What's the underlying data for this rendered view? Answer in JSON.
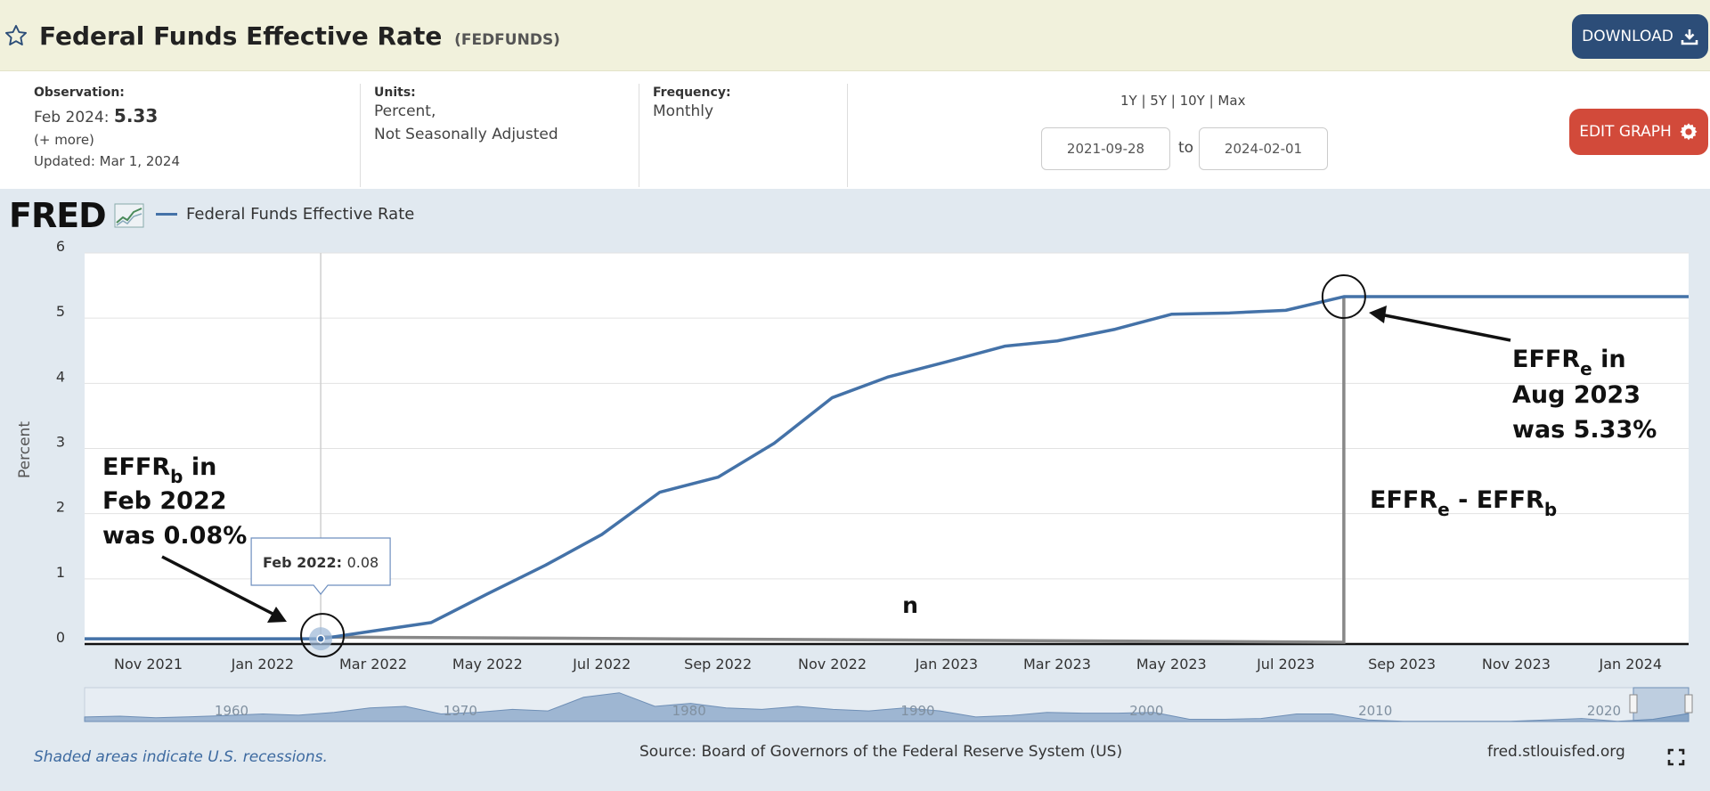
{
  "header": {
    "title": "Federal Funds Effective Rate",
    "series_id": "(FEDFUNDS)",
    "download_label": "DOWNLOAD",
    "edit_label": "EDIT GRAPH"
  },
  "observation": {
    "label": "Observation:",
    "period": "Feb 2024:",
    "value": "5.33",
    "more": "(+ more)",
    "updated": "Updated: Mar 1, 2024"
  },
  "units": {
    "label": "Units:",
    "line1": "Percent,",
    "line2": "Not Seasonally Adjusted"
  },
  "frequency": {
    "label": "Frequency:",
    "value": "Monthly"
  },
  "date_range": {
    "presets": "1Y | 5Y | 10Y | Max",
    "start": "2021-09-28",
    "to": "to",
    "end": "2024-02-01"
  },
  "legend": {
    "logo": "FRED",
    "series_name": "Federal Funds Effective Rate"
  },
  "footer": {
    "recession_note": "Shaded areas indicate U.S. recessions.",
    "source": "Source: Board of Governors of the Federal Reserve System (US)",
    "site": "fred.stlouisfed.org"
  },
  "colors": {
    "line": "#4472a8",
    "annotation": "#888888",
    "header_bg": "#f1f1dc",
    "chart_bg": "#e1e9f0",
    "download": "#2c4d78",
    "edit": "#d24a3a"
  },
  "icons": [
    "star-icon",
    "download-icon",
    "gear-icon",
    "fred-chart-icon",
    "expand-icon"
  ],
  "chart_data": {
    "type": "line",
    "title": "",
    "xlabel": "",
    "ylabel": "Percent",
    "ylim": [
      0,
      6
    ],
    "yticks": [
      0,
      1,
      2,
      3,
      4,
      5,
      6
    ],
    "grid": true,
    "legend_position": "top-left",
    "x_ticks": [
      "Nov 2021",
      "Jan 2022",
      "Mar 2022",
      "May 2022",
      "Jul 2022",
      "Sep 2022",
      "Nov 2022",
      "Jan 2023",
      "Mar 2023",
      "May 2023",
      "Jul 2023",
      "Sep 2023",
      "Nov 2023",
      "Jan 2024"
    ],
    "series": [
      {
        "name": "Federal Funds Effective Rate",
        "x": [
          "2021-09-28",
          "2021-10-01",
          "2021-11-01",
          "2021-12-01",
          "2022-01-01",
          "2022-02-01",
          "2022-03-01",
          "2022-04-01",
          "2022-05-01",
          "2022-06-01",
          "2022-07-01",
          "2022-08-01",
          "2022-09-01",
          "2022-10-01",
          "2022-11-01",
          "2022-12-01",
          "2023-01-01",
          "2023-02-01",
          "2023-03-01",
          "2023-04-01",
          "2023-05-01",
          "2023-06-01",
          "2023-07-01",
          "2023-08-01",
          "2023-09-01",
          "2023-10-01",
          "2023-11-01",
          "2023-12-01",
          "2024-01-01",
          "2024-02-01"
        ],
        "values": [
          0.08,
          0.08,
          0.08,
          0.08,
          0.08,
          0.08,
          0.2,
          0.33,
          0.77,
          1.21,
          1.68,
          2.33,
          2.56,
          3.08,
          3.78,
          4.1,
          4.33,
          4.57,
          4.65,
          4.83,
          5.06,
          5.08,
          5.12,
          5.33,
          5.33,
          5.33,
          5.33,
          5.33,
          5.33,
          5.33
        ]
      }
    ],
    "tooltip": {
      "label": "Feb 2022:",
      "value": "0.08"
    },
    "annotations": {
      "begin": {
        "line1_main": "EFFR",
        "line1_sub": "b",
        "line1_rest": " in",
        "line2": "Feb 2022",
        "line3": "was 0.08%"
      },
      "end": {
        "line1_main": "EFFR",
        "line1_sub": "e",
        "line1_rest": " in",
        "line2": "Aug 2023",
        "line3": "was 5.33%"
      },
      "diff": {
        "a": "EFFR",
        "a_sub": "e",
        "mid": " - EFFR",
        "b_sub": "b"
      },
      "n_label": "n"
    },
    "navigator": {
      "labels": [
        "1960",
        "1970",
        "1980",
        "1990",
        "2000",
        "2010",
        "2020"
      ]
    }
  }
}
